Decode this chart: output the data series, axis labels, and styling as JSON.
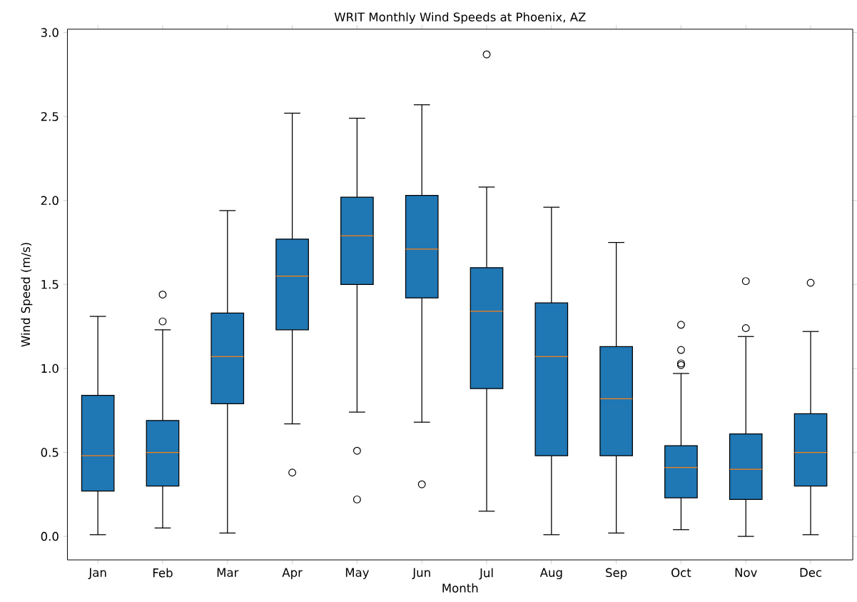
{
  "chart_data": {
    "type": "box",
    "title": "WRIT Monthly Wind Speeds at Phoenix, AZ",
    "xlabel": "Month",
    "ylabel": "Wind Speed (m/s)",
    "categories": [
      "Jan",
      "Feb",
      "Mar",
      "Apr",
      "May",
      "Jun",
      "Jul",
      "Aug",
      "Sep",
      "Oct",
      "Nov",
      "Dec"
    ],
    "color": "#1f77b4",
    "marker": "circle",
    "ylim": [
      -0.14,
      3.02
    ],
    "yticks": [
      {
        "value": 0,
        "label": "0.0"
      },
      {
        "value": 0.5,
        "label": "0.5"
      },
      {
        "value": 1,
        "label": "1.0"
      },
      {
        "value": 1.5,
        "label": "1.5"
      },
      {
        "value": 2,
        "label": "2.0"
      },
      {
        "value": 2.5,
        "label": "2.5"
      },
      {
        "value": 3,
        "label": "3.0"
      }
    ],
    "boxes": [
      {
        "low": 0.01,
        "q1": 0.27,
        "median": 0.48,
        "q3": 0.84,
        "high": 1.31
      },
      {
        "low": 0.05,
        "q1": 0.3,
        "median": 0.5,
        "q3": 0.69,
        "high": 1.23,
        "outliers": [
          1.28,
          1.44
        ]
      },
      {
        "low": 0.02,
        "q1": 0.79,
        "median": 1.07,
        "q3": 1.33,
        "high": 1.94
      },
      {
        "low": 0.67,
        "q1": 1.23,
        "median": 1.55,
        "q3": 1.77,
        "high": 2.52,
        "outliers": [
          0.38
        ]
      },
      {
        "low": 0.74,
        "q1": 1.5,
        "median": 1.79,
        "q3": 2.02,
        "high": 2.49,
        "outliers": [
          0.51,
          0.22
        ]
      },
      {
        "low": 0.68,
        "q1": 1.42,
        "median": 1.71,
        "q3": 2.03,
        "high": 2.57,
        "outliers": [
          0.31
        ]
      },
      {
        "low": 0.15,
        "q1": 0.88,
        "median": 1.34,
        "q3": 1.6,
        "high": 2.08,
        "outliers": [
          2.87
        ]
      },
      {
        "low": 0.01,
        "q1": 0.48,
        "median": 1.07,
        "q3": 1.39,
        "high": 1.96
      },
      {
        "low": 0.02,
        "q1": 0.48,
        "median": 0.82,
        "q3": 1.13,
        "high": 1.75
      },
      {
        "low": 0.04,
        "q1": 0.23,
        "median": 0.41,
        "q3": 0.54,
        "high": 0.97,
        "outliers": [
          1.02,
          1.03,
          1.11,
          1.26
        ]
      },
      {
        "low": 0.0,
        "q1": 0.22,
        "median": 0.4,
        "q3": 0.61,
        "high": 1.19,
        "outliers": [
          1.24,
          1.52
        ]
      },
      {
        "low": 0.01,
        "q1": 0.3,
        "median": 0.5,
        "q3": 0.73,
        "high": 1.22,
        "outliers": [
          1.51
        ]
      }
    ]
  }
}
